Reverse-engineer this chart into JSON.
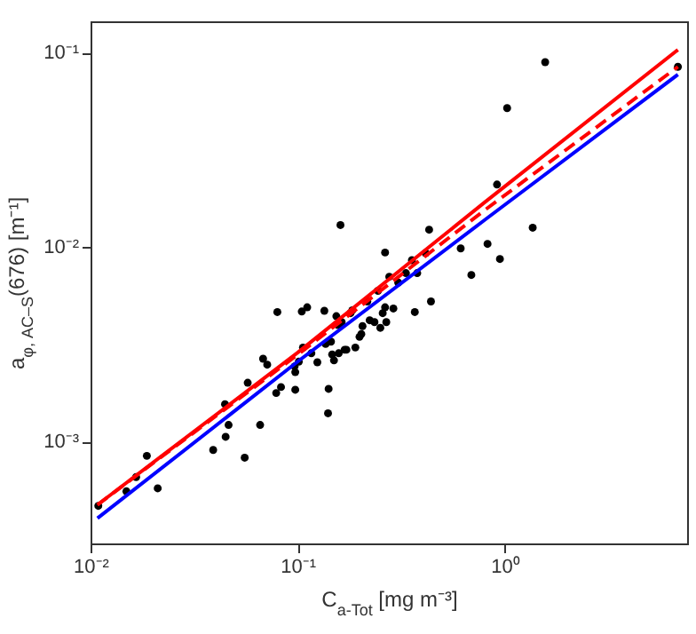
{
  "chart_data": {
    "type": "scatter",
    "xlabel": "C$_{a-Tot}$ [mg m⁻³]",
    "ylabel": "a$_{φ, AC–S}$(676) [m⁻¹]",
    "log": "xy",
    "grid": false,
    "xlim": [
      0.01,
      7.6
    ],
    "ylim": [
      0.0003,
      0.145
    ],
    "xticks": [
      {
        "value": 0.01,
        "label": "10⁻²"
      },
      {
        "value": 0.1,
        "label": "10⁻¹"
      },
      {
        "value": 1,
        "label": "10⁰"
      }
    ],
    "yticks": [
      {
        "value": 0.001,
        "label": "10⁻³"
      },
      {
        "value": 0.01,
        "label": "10⁻²"
      },
      {
        "value": 0.1,
        "label": "10⁻¹"
      }
    ],
    "series": [
      {
        "color": "#000000",
        "marker": "circle",
        "x": [
          0.0109,
          0.0149,
          0.0166,
          0.0187,
          0.0211,
          0.0391,
          0.0446,
          0.0449,
          0.0464,
          0.0555,
          0.0574,
          0.0659,
          0.0681,
          0.0713,
          0.0788,
          0.0798,
          0.0831,
          0.0967,
          0.0974,
          0.0974,
          0.1013,
          0.1047,
          0.1061,
          0.1112,
          0.1165,
          0.1245,
          0.1346,
          0.1365,
          0.1411,
          0.1402,
          0.161,
          0.1449,
          0.1468,
          0.1498,
          0.1538,
          0.1569,
          0.1579,
          0.1632,
          0.1686,
          0.172,
          0.18,
          0.1837,
          0.19,
          0.199,
          0.203,
          0.2057,
          0.217,
          0.2228,
          0.235,
          0.2443,
          0.2508,
          0.2575,
          0.2644,
          0.268,
          0.2644,
          0.277,
          0.29,
          0.306,
          0.3334,
          0.3562,
          0.368,
          0.378,
          0.415,
          0.4315,
          0.4404,
          0.613,
          0.69,
          0.826,
          0.918,
          0.948,
          1.027,
          1.365,
          1.568,
          6.86
        ],
        "values": [
          0.000468,
          0.000556,
          0.000658,
          0.000846,
          0.000576,
          0.000907,
          0.00156,
          0.00106,
          0.00122,
          0.000828,
          0.00201,
          0.00122,
          0.00267,
          0.00249,
          0.00178,
          0.00464,
          0.00191,
          0.00244,
          0.00185,
          0.00228,
          0.00258,
          0.00467,
          0.00305,
          0.00491,
          0.00285,
          0.00256,
          0.00471,
          0.00318,
          0.00187,
          0.0014,
          0.013,
          0.00327,
          0.00281,
          0.00262,
          0.00442,
          0.00398,
          0.00285,
          0.00412,
          0.00297,
          0.00297,
          0.00458,
          0.00474,
          0.00305,
          0.00346,
          0.00358,
          0.00393,
          0.00526,
          0.00421,
          0.00412,
          0.00597,
          0.00385,
          0.00458,
          0.00939,
          0.00412,
          0.00491,
          0.00705,
          0.00484,
          0.00658,
          0.00736,
          0.00858,
          0.00464,
          0.00736,
          0.00933,
          0.0123,
          0.00526,
          0.00986,
          0.0072,
          0.0104,
          0.021,
          0.0087,
          0.0519,
          0.0126,
          0.0894,
          0.0846
        ]
      },
      {
        "type": "line",
        "color": "#ff0000",
        "line_style": "solid",
        "x": [
          0.0108,
          0.1,
          0.8,
          6.86
        ],
        "values": [
          0.000474,
          0.00287,
          0.017,
          0.1035
        ]
      },
      {
        "type": "line",
        "color": "#ff0000",
        "line_style": "dashed",
        "x": [
          0.0108,
          0.1,
          0.8,
          6.86
        ],
        "values": [
          0.000474,
          0.0028,
          0.0155,
          0.0846
        ]
      },
      {
        "type": "line",
        "color": "#0000ff",
        "line_style": "solid",
        "x": [
          0.0108,
          0.1,
          0.8,
          6.86
        ],
        "values": [
          0.000404,
          0.00258,
          0.0138,
          0.0772
        ]
      }
    ]
  }
}
